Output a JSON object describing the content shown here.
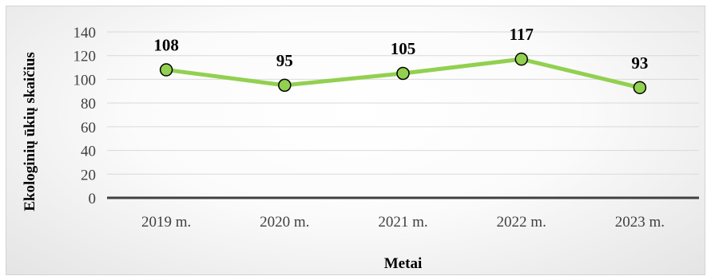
{
  "chart_data": {
    "type": "line",
    "categories": [
      "2019 m.",
      "2020 m.",
      "2021 m.",
      "2022 m.",
      "2023 m."
    ],
    "values": [
      108,
      95,
      105,
      117,
      93
    ],
    "data_labels": [
      "108",
      "95",
      "105",
      "117",
      "93"
    ],
    "xlabel": "Metai",
    "ylabel": "Ekologinių ūkių skaičius",
    "ylim": [
      0,
      140
    ],
    "yticks": [
      0,
      20,
      40,
      60,
      80,
      100,
      120,
      140
    ],
    "ytick_labels": [
      "0",
      "20",
      "40",
      "60",
      "80",
      "100",
      "120",
      "140"
    ],
    "grid": true,
    "legend": "none",
    "colors": {
      "line": "#92d050",
      "marker_fill": "#92d050",
      "marker_stroke": "#000000",
      "gridline": "#d9d9d9",
      "baseline": "#404040"
    }
  }
}
